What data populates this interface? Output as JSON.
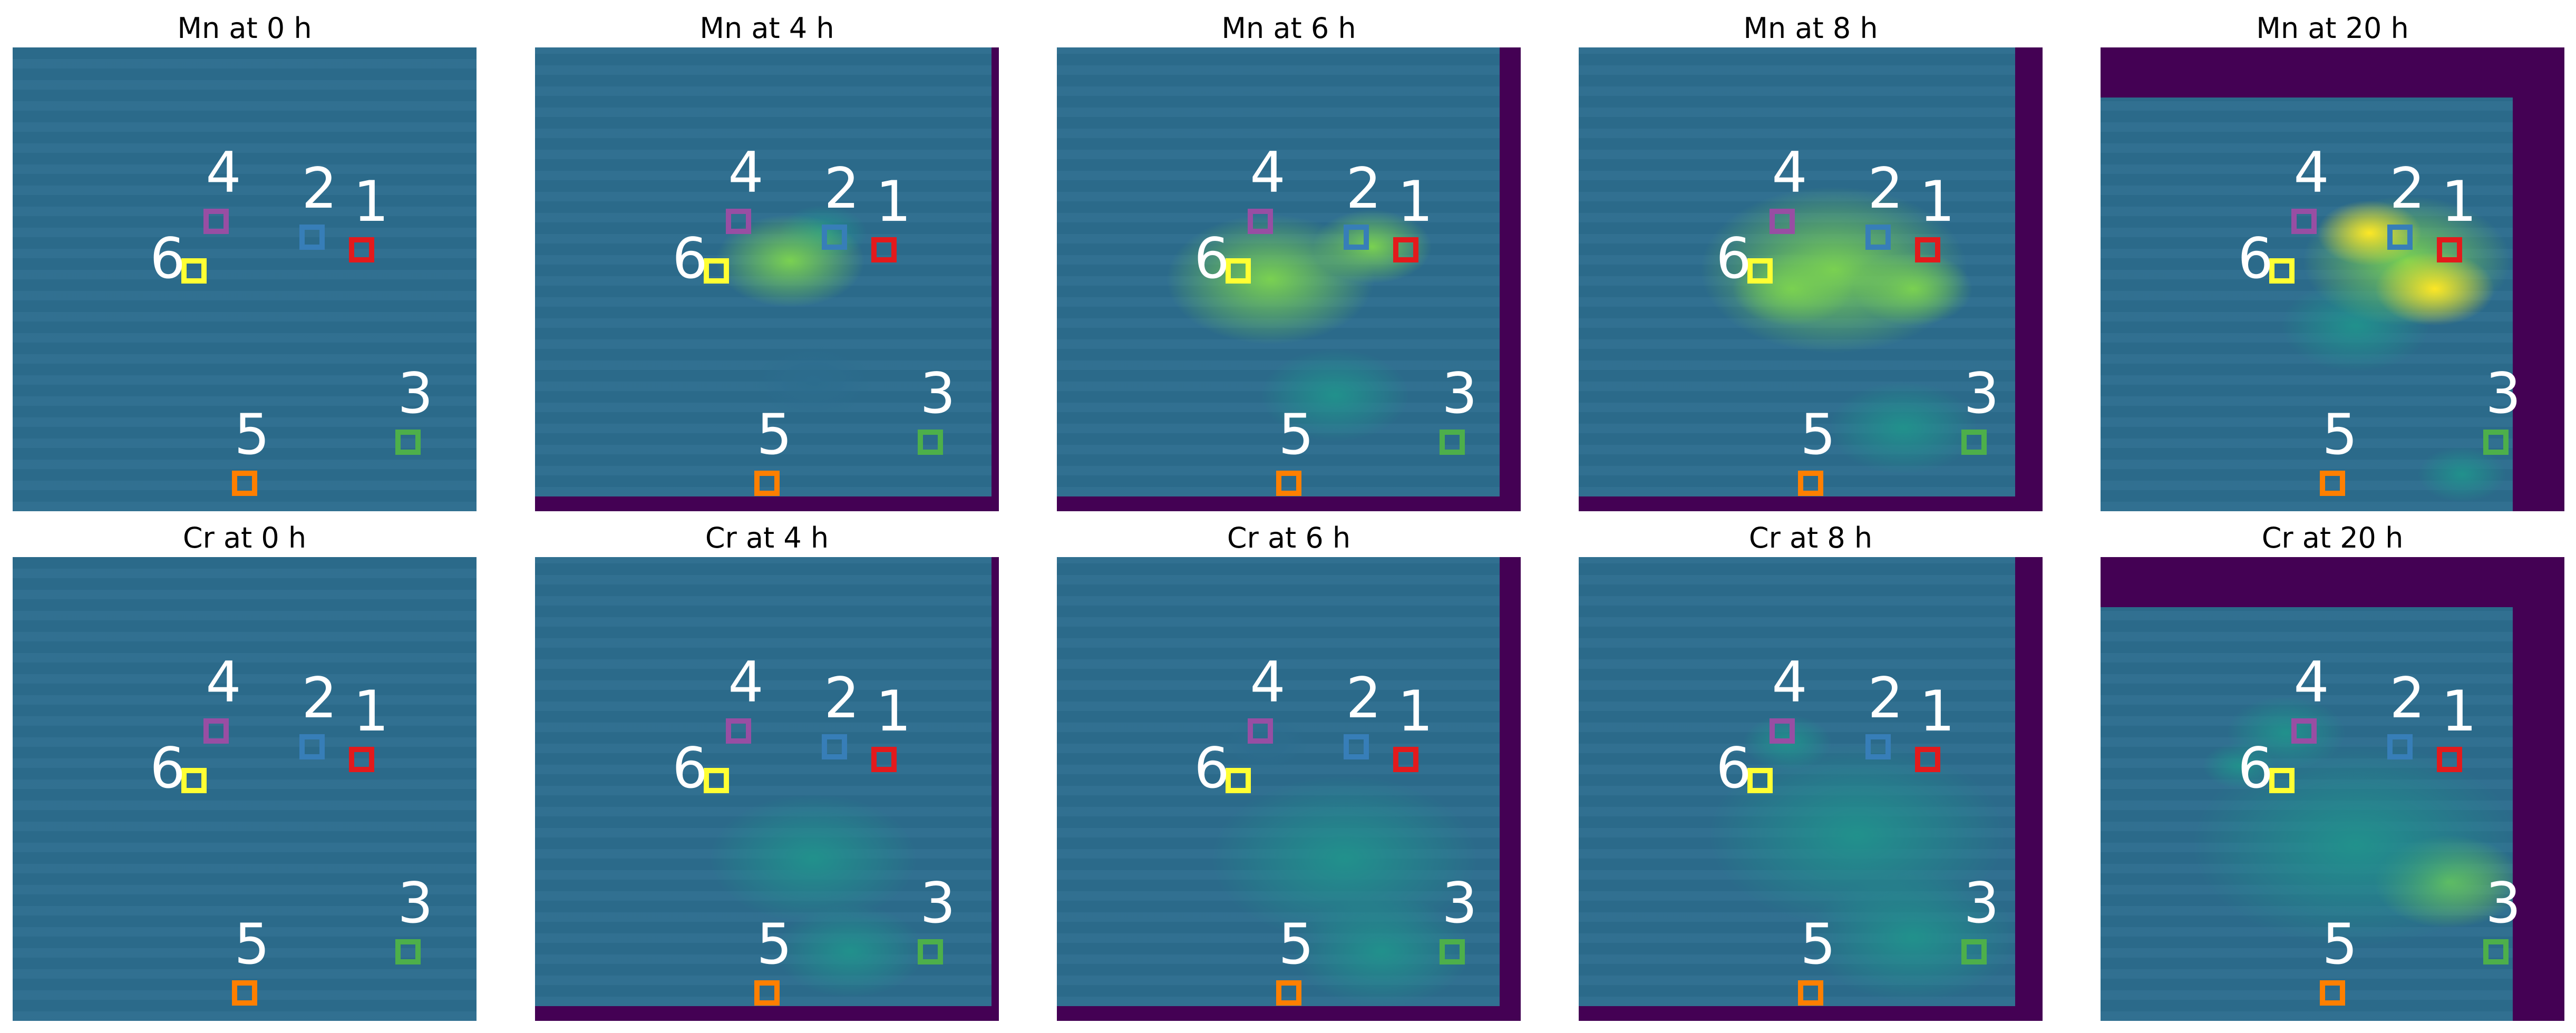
{
  "panels": [
    {
      "title": "Mn at 0 h",
      "element": "Mn",
      "time": "0 h"
    },
    {
      "title": "Mn at 4 h",
      "element": "Mn",
      "time": "4 h"
    },
    {
      "title": "Mn at 6 h",
      "element": "Mn",
      "time": "6 h"
    },
    {
      "title": "Mn at 8 h",
      "element": "Mn",
      "time": "8 h"
    },
    {
      "title": "Mn at 20 h",
      "element": "Mn",
      "time": "20 h"
    },
    {
      "title": "Cr at 0 h",
      "element": "Cr",
      "time": "0 h"
    },
    {
      "title": "Cr at 4 h",
      "element": "Cr",
      "time": "4 h"
    },
    {
      "title": "Cr at 6 h",
      "element": "Cr",
      "time": "6 h"
    },
    {
      "title": "Cr at 8 h",
      "element": "Cr",
      "time": "8 h"
    },
    {
      "title": "Cr at 20 h",
      "element": "Cr",
      "time": "20 h"
    }
  ],
  "regions": [
    {
      "label": "1",
      "color": "#e31a1c"
    },
    {
      "label": "2",
      "color": "#377eb8"
    },
    {
      "label": "3",
      "color": "#4daf4a"
    },
    {
      "label": "4",
      "color": "#984ea3"
    },
    {
      "label": "5",
      "color": "#ff7f00"
    },
    {
      "label": "6",
      "color": "#ffff33"
    }
  ],
  "colormap": {
    "background": "#440154",
    "low": "#2c6d8e",
    "mid": "#21918c",
    "high": "#7ad151",
    "max": "#fde725"
  }
}
